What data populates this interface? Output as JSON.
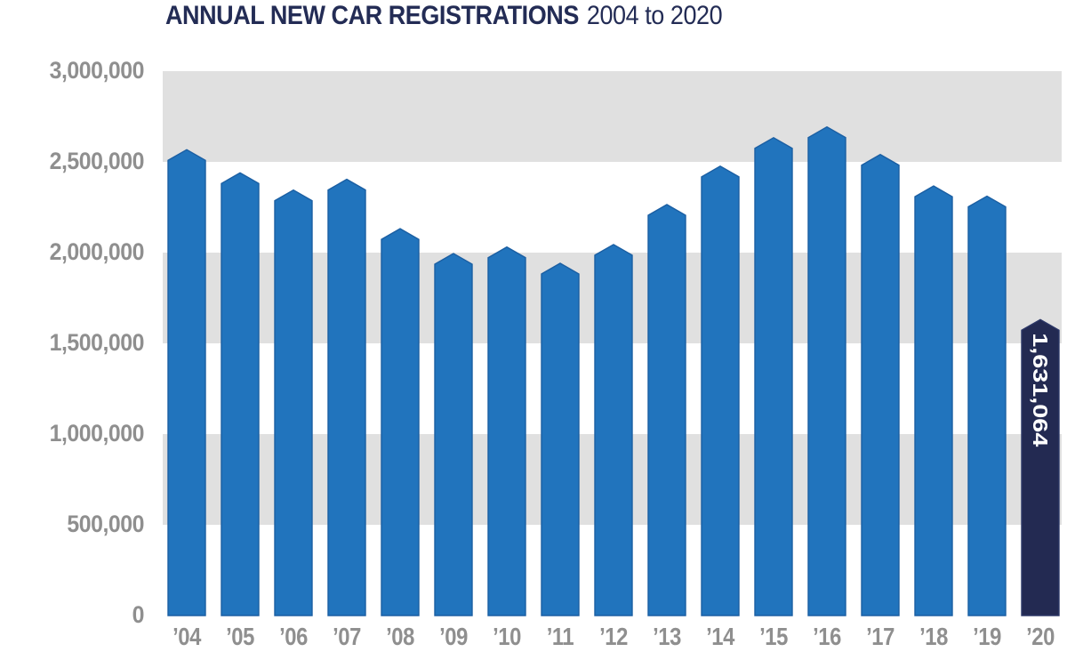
{
  "title": {
    "main": "ANNUAL NEW CAR REGISTRATIONS",
    "subtitle": "2004 to 2020"
  },
  "colors": {
    "background": "#ffffff",
    "title_text": "#232c55",
    "axis_text": "#8f8f8f",
    "band_gray": "#e0e0e0",
    "bar_blue": "#2174bd",
    "bar_blue_edge": "#1b5fa3",
    "bar_highlight_navy": "#232a52",
    "bar_highlight_edge": "#2c3767",
    "annotation_text": "#ffffff"
  },
  "y_axis": {
    "tick_labels_top_to_bottom": [
      "3,000,000",
      "2,500,000",
      "2,000,000",
      "1,500,000",
      "1,000,000",
      "500,000",
      "0"
    ]
  },
  "chart_data": {
    "type": "bar",
    "title": "ANNUAL NEW CAR REGISTRATIONS",
    "subtitle": "2004 to 2020",
    "categories": [
      "’04",
      "’05",
      "’06",
      "’07",
      "’08",
      "’09",
      "’10",
      "’11",
      "’12",
      "’13",
      "’14",
      "’15",
      "’16",
      "’17",
      "’18",
      "’19",
      "’20"
    ],
    "years": [
      2004,
      2005,
      2006,
      2007,
      2008,
      2009,
      2010,
      2011,
      2012,
      2013,
      2014,
      2015,
      2016,
      2017,
      2018,
      2019,
      2020
    ],
    "values": [
      2567269,
      2439717,
      2344864,
      2404007,
      2131795,
      1994999,
      2030846,
      1941253,
      2044609,
      2264737,
      2476435,
      2633503,
      2692786,
      2540617,
      2367147,
      2311140,
      1631064
    ],
    "ylim": [
      0,
      3000000
    ],
    "y_ticks": [
      0,
      500000,
      1000000,
      1500000,
      2000000,
      2500000,
      3000000
    ],
    "grid": "alternating horizontal gray bands",
    "legend": "none",
    "highlight": {
      "index": 16,
      "label": "1,631,064"
    }
  }
}
